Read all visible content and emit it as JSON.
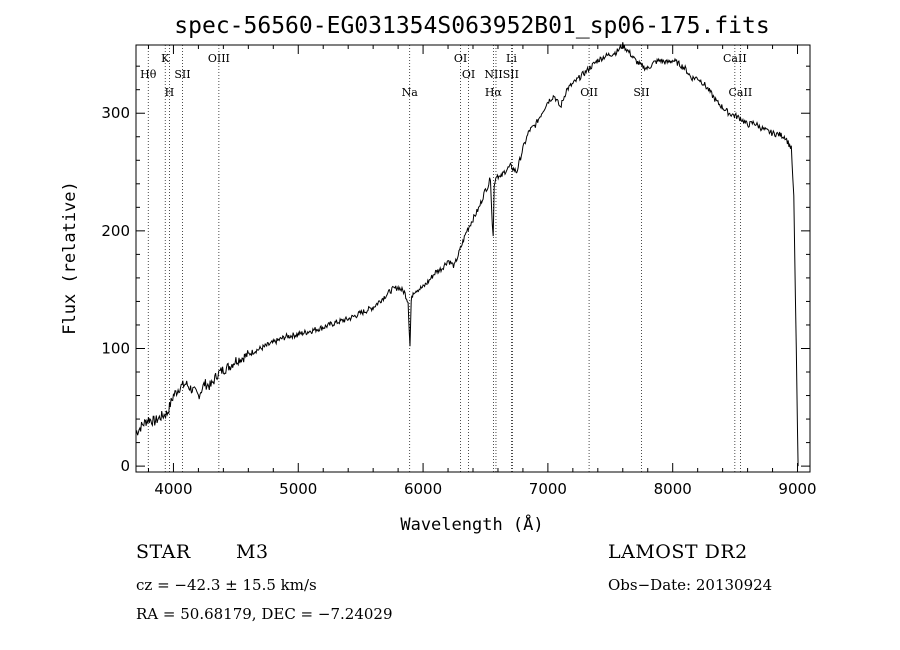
{
  "chart_data": {
    "type": "line",
    "title": "spec-56560-EG031354S063952B01_sp06-175.fits",
    "xlabel": "Wavelength (Å)",
    "ylabel": "Flux (relative)",
    "xlim": [
      3700,
      9100
    ],
    "ylim": [
      -5,
      358
    ],
    "xticks": [
      4000,
      5000,
      6000,
      7000,
      8000,
      9000
    ],
    "yticks": [
      0,
      100,
      200,
      300
    ],
    "series": [
      {
        "name": "flux",
        "x": [
          3700,
          3750,
          3800,
          3850,
          3900,
          3950,
          4000,
          4050,
          4100,
          4150,
          4200,
          4250,
          4300,
          4350,
          4400,
          4450,
          4500,
          4550,
          4600,
          4650,
          4700,
          4800,
          4900,
          5000,
          5100,
          5200,
          5300,
          5400,
          5500,
          5600,
          5700,
          5750,
          5800,
          5850,
          5880,
          5895,
          5905,
          5920,
          5950,
          6000,
          6050,
          6100,
          6150,
          6200,
          6250,
          6300,
          6350,
          6400,
          6450,
          6500,
          6520,
          6540,
          6555,
          6562,
          6570,
          6590,
          6620,
          6650,
          6700,
          6750,
          6800,
          6850,
          6900,
          6950,
          7000,
          7050,
          7100,
          7150,
          7200,
          7250,
          7300,
          7350,
          7400,
          7450,
          7500,
          7550,
          7600,
          7650,
          7700,
          7750,
          7800,
          7850,
          7900,
          7950,
          8000,
          8050,
          8100,
          8150,
          8200,
          8250,
          8300,
          8350,
          8400,
          8450,
          8500,
          8550,
          8600,
          8650,
          8700,
          8750,
          8800,
          8850,
          8900,
          8950,
          8970,
          8990,
          9000,
          9005
        ],
        "values": [
          28,
          35,
          40,
          38,
          42,
          45,
          60,
          67,
          70,
          65,
          60,
          70,
          68,
          78,
          82,
          85,
          90,
          92,
          95,
          98,
          100,
          105,
          110,
          112,
          115,
          118,
          122,
          125,
          130,
          135,
          145,
          150,
          152,
          148,
          140,
          102,
          140,
          148,
          150,
          152,
          158,
          165,
          168,
          175,
          170,
          185,
          200,
          210,
          220,
          235,
          238,
          245,
          205,
          195,
          240,
          248,
          245,
          250,
          255,
          250,
          270,
          285,
          290,
          300,
          310,
          315,
          305,
          320,
          325,
          330,
          335,
          340,
          345,
          348,
          350,
          352,
          358,
          352,
          345,
          340,
          338,
          343,
          345,
          343,
          345,
          342,
          338,
          330,
          330,
          325,
          318,
          310,
          305,
          300,
          298,
          295,
          290,
          292,
          288,
          285,
          283,
          282,
          280,
          270,
          230,
          100,
          30,
          0
        ]
      }
    ],
    "lines": [
      {
        "name": "Hθ",
        "x": 3798
      },
      {
        "name": "K",
        "x": 3934
      },
      {
        "name": "H",
        "x": 3968
      },
      {
        "name": "SII",
        "x": 4072
      },
      {
        "name": "OIII",
        "x": 4364
      },
      {
        "name": "Na",
        "x": 5893
      },
      {
        "name": "OI",
        "x": 6300
      },
      {
        "name": "OI",
        "x": 6364
      },
      {
        "name": "Hα",
        "x": 6563
      },
      {
        "name": "NII",
        "x": 6584
      },
      {
        "name": "SII",
        "x": 6717
      },
      {
        "name": "Li",
        "x": 6708
      },
      {
        "name": "OII",
        "x": 7330
      },
      {
        "name": "SII",
        "x": 7750
      },
      {
        "name": "CaII",
        "x": 8498
      },
      {
        "name": "CaII",
        "x": 8542
      }
    ],
    "line_labels": [
      {
        "text": "Hθ",
        "x": 3798,
        "row": 2
      },
      {
        "text": "K",
        "x": 3934,
        "row": 1
      },
      {
        "text": "H",
        "x": 3968,
        "row": 3
      },
      {
        "text": "SII",
        "x": 4072,
        "row": 2
      },
      {
        "text": "OIII",
        "x": 4364,
        "row": 1
      },
      {
        "text": "Na",
        "x": 5893,
        "row": 3
      },
      {
        "text": "OI",
        "x": 6300,
        "row": 1
      },
      {
        "text": "OI",
        "x": 6364,
        "row": 2
      },
      {
        "text": "Hα",
        "x": 6563,
        "row": 3
      },
      {
        "text": "NIISII",
        "x": 6630,
        "row": 2
      },
      {
        "text": "Li",
        "x": 6708,
        "row": 1
      },
      {
        "text": "OII",
        "x": 7330,
        "row": 3
      },
      {
        "text": "SII",
        "x": 7750,
        "row": 3
      },
      {
        "text": "CaII",
        "x": 8498,
        "row": 1
      },
      {
        "text": "CaII",
        "x": 8542,
        "row": 3
      }
    ]
  },
  "info": {
    "object_class": "STAR",
    "subclass": "M3",
    "survey": "LAMOST DR2",
    "cz": "cz = −42.3 ± 15.5 km/s",
    "obs_date": "Obs−Date: 20130924",
    "coords": "RA =  50.68179, DEC =  −7.24029"
  }
}
